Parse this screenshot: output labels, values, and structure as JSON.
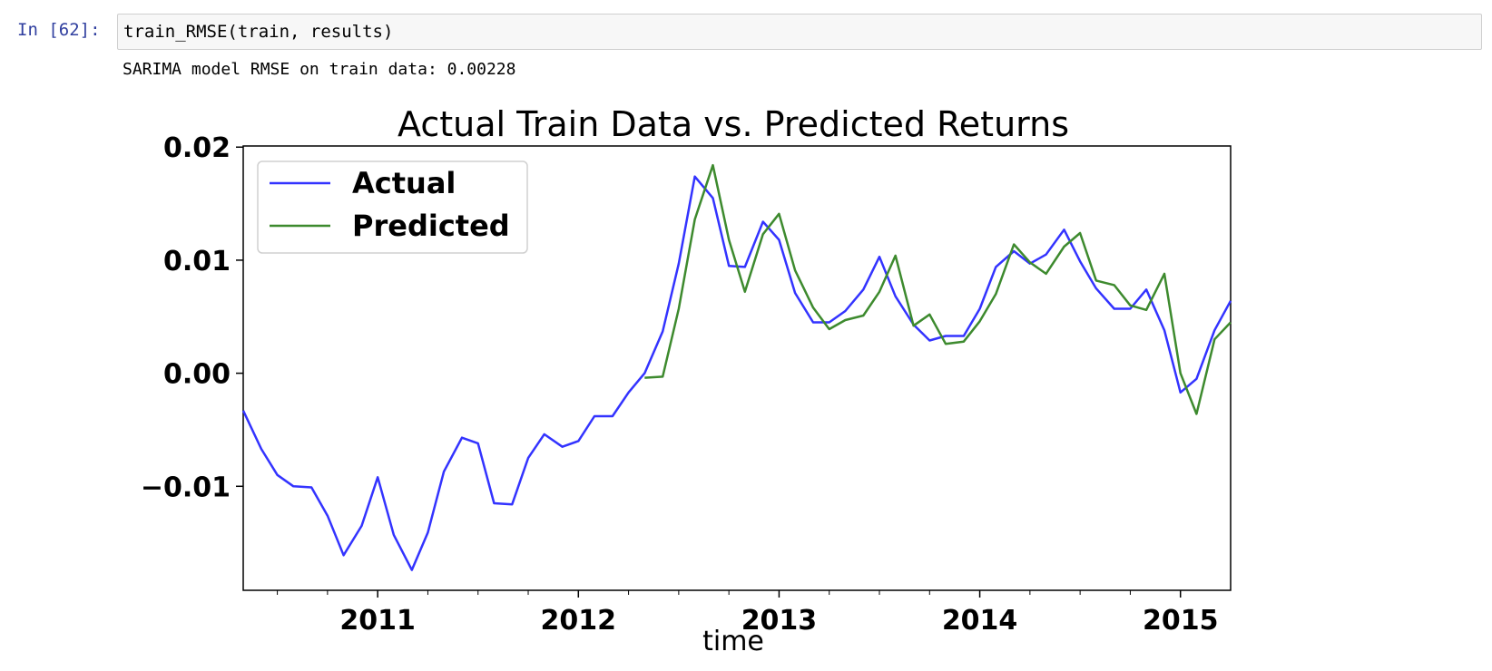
{
  "cell": {
    "prompt": "In [62]:",
    "code": "train_RMSE(train, results)",
    "stdout": "SARIMA model RMSE on train data: 0.00228"
  },
  "colors": {
    "actual": "#3333ff",
    "predicted": "#3d8a2e",
    "prompt": "#303f9f"
  },
  "chart_data": {
    "type": "line",
    "title": "Actual Train Data vs. Predicted Returns",
    "xlabel": "time",
    "ylabel": "",
    "xlim": [
      2010.33,
      2015.25
    ],
    "ylim": [
      -0.0192,
      0.0201
    ],
    "yticks": [
      -0.01,
      0.0,
      0.01,
      0.02
    ],
    "ytick_labels": [
      "−0.01",
      "0.00",
      "0.01",
      "0.02"
    ],
    "xticks": [
      2011,
      2012,
      2013,
      2014,
      2015
    ],
    "xtick_labels": [
      "2011",
      "2012",
      "2013",
      "2014",
      "2015"
    ],
    "legend": {
      "position": "top-left",
      "entries": [
        "Actual",
        "Predicted"
      ]
    },
    "x": [
      2010.33,
      2010.42,
      2010.5,
      2010.58,
      2010.67,
      2010.75,
      2010.83,
      2010.92,
      2011.0,
      2011.08,
      2011.17,
      2011.25,
      2011.33,
      2011.42,
      2011.5,
      2011.58,
      2011.67,
      2011.75,
      2011.83,
      2011.92,
      2012.0,
      2012.08,
      2012.17,
      2012.25,
      2012.33,
      2012.42,
      2012.5,
      2012.58,
      2012.67,
      2012.75,
      2012.83,
      2012.92,
      2013.0,
      2013.08,
      2013.17,
      2013.25,
      2013.33,
      2013.42,
      2013.5,
      2013.58,
      2013.67,
      2013.75,
      2013.83,
      2013.92,
      2014.0,
      2014.08,
      2014.17,
      2014.25,
      2014.33,
      2014.42,
      2014.5,
      2014.58,
      2014.67,
      2014.75,
      2014.83,
      2014.92,
      2015.0,
      2015.08,
      2015.17,
      2015.25
    ],
    "series": [
      {
        "name": "Actual",
        "values": [
          -0.0033,
          -0.0067,
          -0.009,
          -0.01,
          -0.0101,
          -0.0126,
          -0.0161,
          -0.0135,
          -0.0092,
          -0.0143,
          -0.0174,
          -0.0141,
          -0.0087,
          -0.0057,
          -0.0062,
          -0.0115,
          -0.0116,
          -0.0075,
          -0.0054,
          -0.0065,
          -0.006,
          -0.0038,
          -0.0038,
          -0.0017,
          0.0,
          0.0037,
          0.0097,
          0.0174,
          0.0155,
          0.0095,
          0.0094,
          0.0134,
          0.0118,
          0.0071,
          0.0045,
          0.0045,
          0.0055,
          0.0074,
          0.0103,
          0.0068,
          0.0043,
          0.0029,
          0.0033,
          0.0033,
          0.0057,
          0.0094,
          0.0108,
          0.0097,
          0.0105,
          0.0127,
          0.0099,
          0.0075,
          0.0057,
          0.0057,
          0.0074,
          0.0038,
          -0.0017,
          -0.0005,
          0.0038,
          0.0064
        ]
      },
      {
        "name": "Predicted",
        "values": [
          null,
          null,
          null,
          null,
          null,
          null,
          null,
          null,
          null,
          null,
          null,
          null,
          null,
          null,
          null,
          null,
          null,
          null,
          null,
          null,
          null,
          null,
          null,
          null,
          -0.0004,
          -0.0003,
          0.0057,
          0.0136,
          0.0184,
          0.0118,
          0.0072,
          0.0123,
          0.0141,
          0.0091,
          0.0058,
          0.0039,
          0.0047,
          0.0051,
          0.0072,
          0.0104,
          0.0042,
          0.0052,
          0.0026,
          0.0028,
          0.0046,
          0.007,
          0.0114,
          0.0098,
          0.0088,
          0.0112,
          0.0124,
          0.0082,
          0.0078,
          0.006,
          0.0056,
          0.0088,
          0.0,
          -0.0036,
          0.003,
          0.0045
        ]
      }
    ]
  }
}
